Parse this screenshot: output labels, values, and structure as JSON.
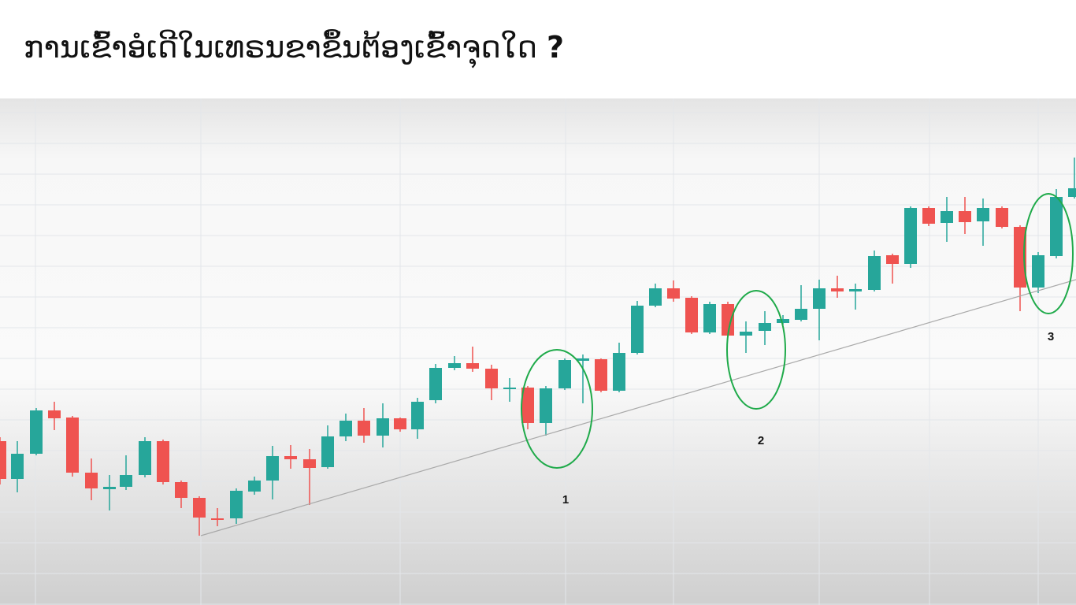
{
  "title": {
    "text": "ການເຂົ້າອໍເດີໃນເທຣນຂາຂຶ້ນຕ້ອງເຂົ້າຈຸດໃດ",
    "mark": "?"
  },
  "labels": [
    "1",
    "2",
    "3"
  ]
}
